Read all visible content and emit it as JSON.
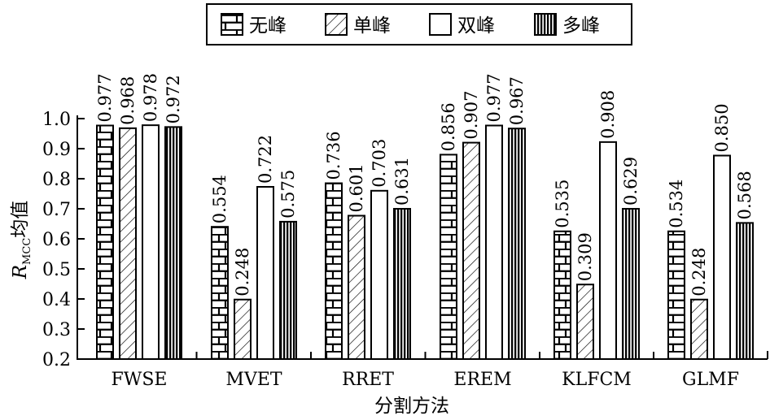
{
  "chart_data": {
    "type": "bar",
    "categories": [
      "FWSE",
      "MVET",
      "RRET",
      "EREM",
      "KLFCM",
      "GLMF"
    ],
    "series": [
      {
        "name": "无峰",
        "pattern": "brick",
        "values": [
          0.977,
          0.554,
          0.736,
          0.856,
          0.535,
          0.534
        ]
      },
      {
        "name": "单峰",
        "pattern": "hatch",
        "values": [
          0.968,
          0.248,
          0.601,
          0.907,
          0.309,
          0.248
        ]
      },
      {
        "name": "双峰",
        "pattern": "plain",
        "values": [
          0.978,
          0.722,
          0.703,
          0.977,
          0.908,
          0.85
        ]
      },
      {
        "name": "多峰",
        "pattern": "vlines",
        "values": [
          0.972,
          0.575,
          0.631,
          0.967,
          0.629,
          0.568
        ]
      }
    ],
    "bar_heights": [
      [
        0.977,
        0.64,
        0.785,
        0.88,
        0.625,
        0.625
      ],
      [
        0.968,
        0.398,
        0.677,
        0.92,
        0.448,
        0.398
      ],
      [
        0.978,
        0.773,
        0.76,
        0.977,
        0.922,
        0.877
      ],
      [
        0.972,
        0.657,
        0.7,
        0.967,
        0.7,
        0.653
      ]
    ],
    "label_strings": [
      [
        "0.977",
        "0.554",
        "0.736",
        "0.856",
        "0.535",
        "0.534"
      ],
      [
        "0.968",
        "0.248",
        "0.601",
        "0.907",
        "0.309",
        "0.248"
      ],
      [
        "0.978",
        "0.722",
        "0.703",
        "0.977",
        "0.908",
        "0.850"
      ],
      [
        "0.972",
        "0.575",
        "0.631",
        "0.967",
        "0.629",
        "0.568"
      ]
    ],
    "xlabel": "分割方法",
    "ylabel_main": "R",
    "ylabel_sub": "MCC",
    "ylabel_suffix": "均值",
    "ylim": [
      0.2,
      1.0
    ],
    "yticks": [
      "0.2",
      "0.3",
      "0.4",
      "0.5",
      "0.6",
      "0.7",
      "0.8",
      "0.9",
      "1.0"
    ],
    "legend_position": "top-center",
    "grid": false
  }
}
